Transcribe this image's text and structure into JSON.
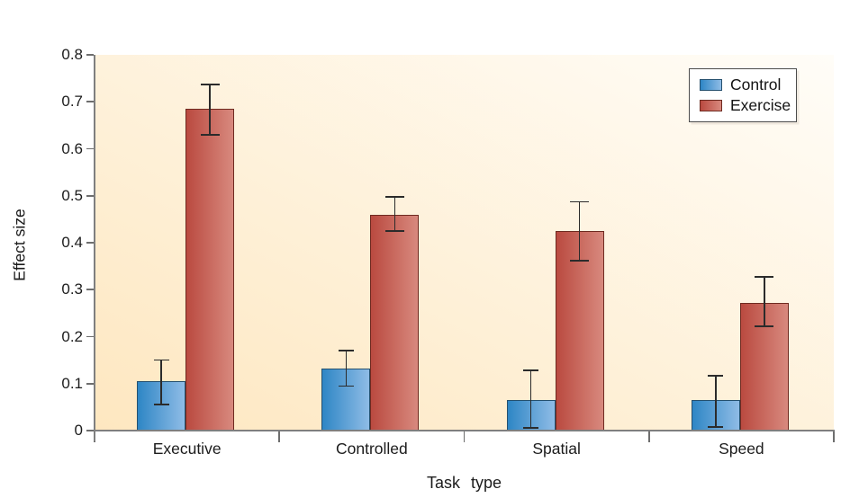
{
  "chart_data": {
    "type": "bar",
    "title": "",
    "categories": [
      "Executive",
      "Controlled",
      "Spatial",
      "Speed"
    ],
    "series": [
      {
        "name": "Control",
        "values": [
          0.105,
          0.133,
          0.066,
          0.066
        ],
        "err_low": [
          0.055,
          0.095,
          0.006,
          0.008
        ],
        "err_high": [
          0.15,
          0.17,
          0.128,
          0.117
        ],
        "gradient": [
          "#2e86c5",
          "#8fbce6"
        ],
        "border": "#25506e",
        "cap_width": 17
      },
      {
        "name": "Exercise",
        "values": [
          0.685,
          0.46,
          0.424,
          0.272
        ],
        "err_low": [
          0.63,
          0.425,
          0.362,
          0.222
        ],
        "err_high": [
          0.737,
          0.498,
          0.487,
          0.327
        ],
        "gradient": [
          "#ba4a40",
          "#d8897e"
        ],
        "border": "#6e2a20",
        "cap_width": 21
      }
    ],
    "xlabel": "Task type",
    "ylabel": "Effect size",
    "ylim": [
      0,
      0.8
    ],
    "yticks": [
      0,
      0.1,
      0.2,
      0.3,
      0.4,
      0.5,
      0.6,
      0.7,
      0.8
    ],
    "ytick_labels": [
      "0",
      "0.1",
      "0.2",
      "0.3",
      "0.4",
      "0.5",
      "0.6",
      "0.7",
      "0.8"
    ],
    "grid": false,
    "legend_position": "top-right",
    "colors": {
      "plot_bg_gradient": [
        "#fee7c0",
        "#fffdf8"
      ],
      "axis": "#7f7f7f",
      "error_bar": "#2b2b2b",
      "text": "#1c1c1c",
      "legend_border": "#4c4c4c"
    }
  },
  "legend": {
    "items": [
      {
        "label": "Control"
      },
      {
        "label": "Exercise"
      }
    ]
  }
}
